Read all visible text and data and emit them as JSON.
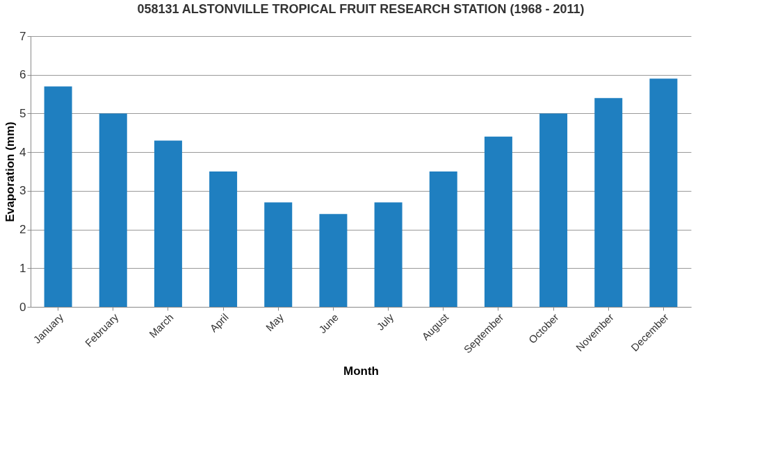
{
  "chart_data": {
    "type": "bar",
    "title": "058131 ALSTONVILLE TROPICAL FRUIT RESEARCH STATION (1968 - 2011)",
    "xlabel": "Month",
    "ylabel": "Evaporation (mm)",
    "categories": [
      "January",
      "February",
      "March",
      "April",
      "May",
      "June",
      "July",
      "August",
      "September",
      "October",
      "November",
      "December"
    ],
    "values": [
      5.7,
      5.0,
      4.3,
      3.5,
      2.7,
      2.4,
      2.7,
      3.5,
      4.4,
      5.0,
      5.4,
      5.9
    ],
    "color": "#1f7fc0",
    "ylim": [
      0,
      7
    ],
    "yticks": [
      0,
      1,
      2,
      3,
      4,
      5,
      6,
      7
    ],
    "grid": "y"
  }
}
